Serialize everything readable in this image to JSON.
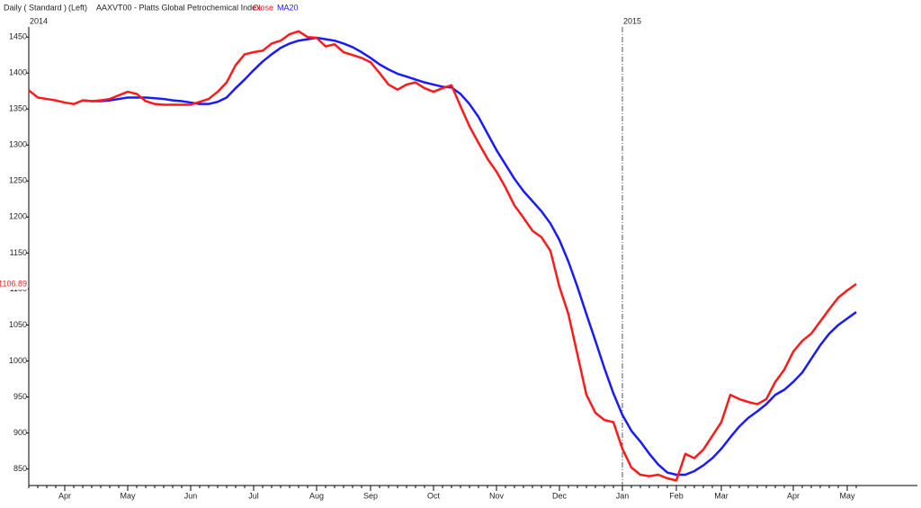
{
  "chart_data": {
    "type": "line",
    "header": [
      "Daily ( Standard )",
      "(Left)"
    ],
    "title": "AAXVT00 - Platts Global Petrochemical Index",
    "categories": [
      null,
      null,
      null,
      null,
      "Apr",
      null,
      null,
      null,
      null,
      null,
      null,
      "May",
      null,
      null,
      null,
      null,
      null,
      null,
      "Jun",
      null,
      null,
      null,
      null,
      null,
      null,
      "Jul",
      null,
      null,
      null,
      null,
      null,
      null,
      "Aug",
      null,
      null,
      null,
      null,
      null,
      "Sep",
      null,
      null,
      null,
      null,
      null,
      null,
      "Oct",
      null,
      null,
      null,
      null,
      null,
      null,
      "Nov",
      null,
      null,
      null,
      null,
      null,
      null,
      "Dec",
      null,
      null,
      null,
      null,
      null,
      null,
      "Jan",
      null,
      null,
      null,
      null,
      null,
      "Feb",
      null,
      null,
      null,
      null,
      "Mar",
      null,
      null,
      null,
      null,
      null,
      null,
      null,
      "Apr",
      null,
      null,
      null,
      null,
      null,
      "May",
      null
    ],
    "year_categories": [
      "2014",
      null,
      null,
      null,
      null,
      null,
      null,
      null,
      null,
      null,
      null,
      null,
      null,
      null,
      null,
      null,
      null,
      null,
      null,
      null,
      null,
      null,
      null,
      null,
      null,
      null,
      null,
      null,
      null,
      null,
      null,
      null,
      null,
      null,
      null,
      null,
      null,
      null,
      null,
      null,
      null,
      null,
      null,
      null,
      null,
      null,
      null,
      null,
      null,
      null,
      null,
      null,
      null,
      null,
      null,
      null,
      null,
      null,
      null,
      null,
      null,
      null,
      null,
      null,
      null,
      null,
      "2015",
      null,
      null,
      null,
      null,
      null,
      null,
      null,
      null,
      null,
      null,
      null,
      null,
      null,
      null,
      null,
      null,
      null,
      null,
      null,
      null,
      null,
      null,
      null,
      null,
      null,
      null
    ],
    "series": [
      {
        "name": "Close",
        "color": "#ff1a1a",
        "values": [
          1376,
          1366,
          1364,
          1362,
          1359,
          1357,
          1362,
          1361,
          1362,
          1364,
          1369,
          1374,
          1371,
          1361,
          1357,
          1356,
          1356,
          1356,
          1356,
          1360,
          1364,
          1374,
          1387,
          1411,
          1426,
          1429,
          1431,
          1441,
          1445,
          1454,
          1458,
          1450,
          1449,
          1437,
          1440,
          1429,
          1425,
          1421,
          1415,
          1400,
          1384,
          1377,
          1384,
          1387,
          1379,
          1374,
          1379,
          1383,
          1354,
          1326,
          1303,
          1281,
          1263,
          1241,
          1216,
          1199,
          1181,
          1172,
          1153,
          1103,
          1065,
          1009,
          953,
          928,
          918,
          915,
          878,
          852,
          842,
          840,
          842,
          837,
          834,
          871,
          865,
          877,
          896,
          915,
          953,
          947,
          943,
          940,
          947,
          971,
          988,
          1013,
          1028,
          1038,
          1055,
          1072,
          1088,
          1098,
          1106.89
        ]
      },
      {
        "name": "MA20",
        "color": "#1a1aff",
        "values": [
          null,
          null,
          null,
          null,
          null,
          null,
          1362,
          1361,
          1361,
          1362,
          1364,
          1366,
          1366,
          1366,
          1365,
          1364,
          1362,
          1361,
          1359,
          1357,
          1357,
          1360,
          1366,
          1379,
          1391,
          1404,
          1416,
          1426,
          1435,
          1441,
          1445,
          1447,
          1449,
          1447,
          1445,
          1441,
          1436,
          1429,
          1421,
          1412,
          1405,
          1399,
          1395,
          1391,
          1387,
          1384,
          1381,
          1380,
          1371,
          1357,
          1339,
          1316,
          1293,
          1273,
          1253,
          1236,
          1222,
          1208,
          1191,
          1168,
          1138,
          1103,
          1065,
          1028,
          990,
          955,
          925,
          903,
          888,
          871,
          856,
          845,
          842,
          842,
          847,
          855,
          865,
          878,
          894,
          909,
          921,
          930,
          940,
          953,
          960,
          971,
          984,
          1003,
          1022,
          1038,
          1050,
          1059,
          1068
        ]
      }
    ],
    "ylim": [
      827,
      1464
    ],
    "yticks": [
      850,
      900,
      950,
      1000,
      1050,
      1100,
      1150,
      1200,
      1250,
      1300,
      1350,
      1400,
      1450
    ]
  }
}
